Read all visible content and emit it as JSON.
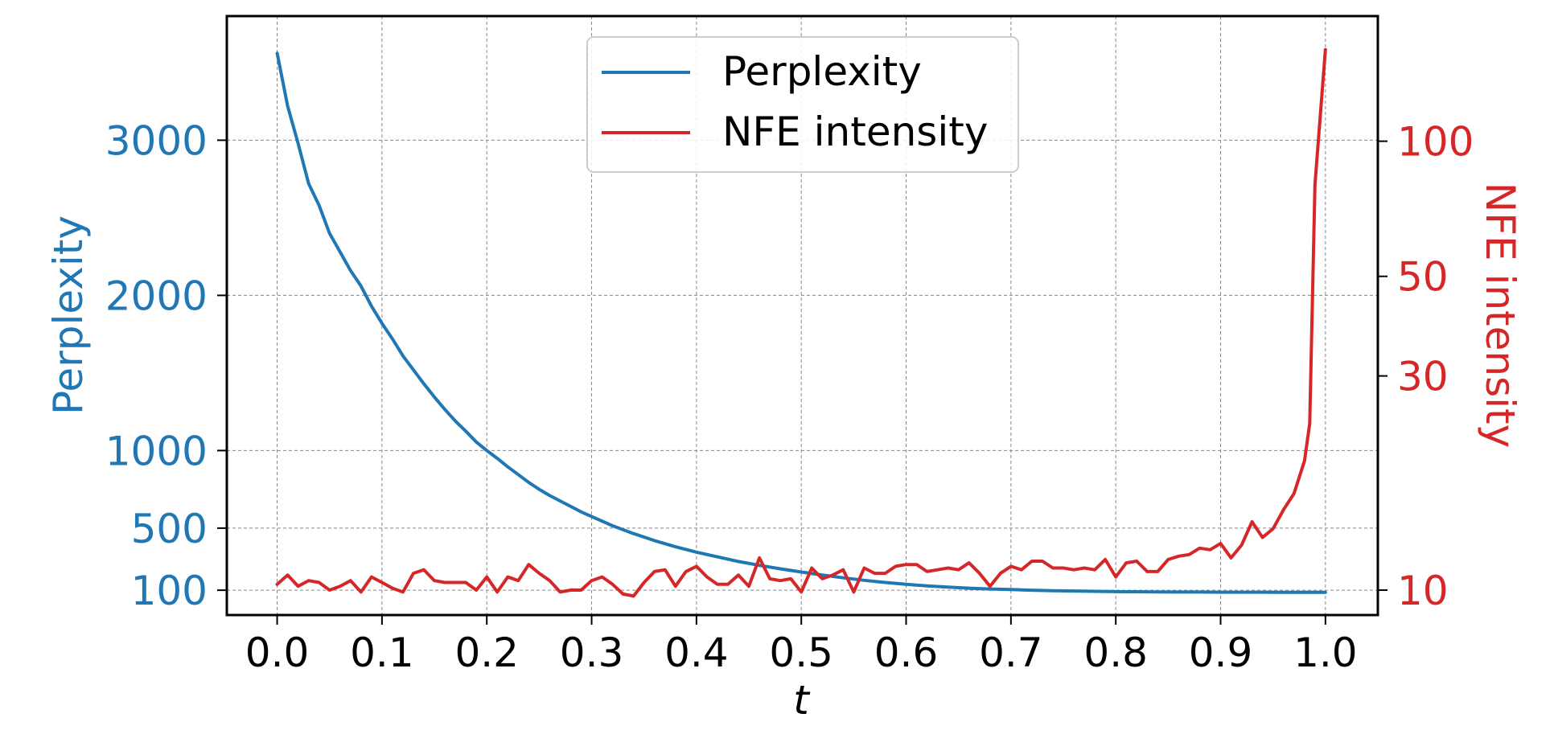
{
  "chart_data": {
    "type": "line",
    "xlabel": "t",
    "ylabel_left": "Perplexity",
    "ylabel_right": "NFE intensity",
    "xlim": [
      -0.048,
      1.05
    ],
    "ylim_left": [
      -60,
      3800
    ],
    "ylim_right_log": [
      8.8,
      190
    ],
    "grid": true,
    "legend_position": "top-center",
    "x_ticks": [
      "0.0",
      "0.1",
      "0.2",
      "0.3",
      "0.4",
      "0.5",
      "0.6",
      "0.7",
      "0.8",
      "0.9",
      "1.0"
    ],
    "left_ticks": [
      "100",
      "500",
      "1000",
      "2000",
      "3000"
    ],
    "right_ticks": [
      "10",
      "30",
      "50",
      "100"
    ],
    "colors": {
      "perplexity": "#1f77b4",
      "nfe": "#d62728",
      "grid": "#888888"
    },
    "legend": [
      "Perplexity",
      "NFE intensity"
    ],
    "series": [
      {
        "name": "Perplexity",
        "axis": "left",
        "x": [
          0.0,
          0.01,
          0.02,
          0.03,
          0.04,
          0.05,
          0.06,
          0.07,
          0.08,
          0.09,
          0.1,
          0.11,
          0.12,
          0.13,
          0.14,
          0.15,
          0.16,
          0.17,
          0.18,
          0.19,
          0.2,
          0.21,
          0.22,
          0.23,
          0.24,
          0.25,
          0.26,
          0.27,
          0.28,
          0.29,
          0.3,
          0.32,
          0.34,
          0.36,
          0.38,
          0.4,
          0.42,
          0.44,
          0.46,
          0.48,
          0.5,
          0.52,
          0.54,
          0.56,
          0.58,
          0.6,
          0.62,
          0.64,
          0.66,
          0.68,
          0.7,
          0.72,
          0.74,
          0.76,
          0.78,
          0.8,
          0.82,
          0.84,
          0.86,
          0.88,
          0.9,
          0.92,
          0.94,
          0.96,
          0.98,
          1.0
        ],
        "y": [
          3560,
          3220,
          2980,
          2720,
          2580,
          2400,
          2280,
          2160,
          2060,
          1930,
          1820,
          1720,
          1610,
          1520,
          1430,
          1345,
          1265,
          1190,
          1125,
          1055,
          1000,
          950,
          895,
          845,
          795,
          750,
          710,
          675,
          640,
          605,
          575,
          515,
          465,
          420,
          380,
          345,
          315,
          285,
          260,
          238,
          217,
          198,
          180,
          164,
          150,
          138,
          128,
          120,
          113,
          108,
          104,
          100,
          97,
          95,
          93,
          91,
          90,
          89,
          88,
          88,
          87,
          87,
          87,
          86,
          86,
          86
        ]
      },
      {
        "name": "NFE intensity",
        "axis": "right",
        "x": [
          0.0,
          0.01,
          0.02,
          0.03,
          0.04,
          0.05,
          0.06,
          0.07,
          0.08,
          0.09,
          0.1,
          0.11,
          0.12,
          0.13,
          0.14,
          0.15,
          0.16,
          0.17,
          0.18,
          0.19,
          0.2,
          0.21,
          0.22,
          0.23,
          0.24,
          0.25,
          0.26,
          0.27,
          0.28,
          0.29,
          0.3,
          0.31,
          0.32,
          0.33,
          0.34,
          0.35,
          0.36,
          0.37,
          0.38,
          0.39,
          0.4,
          0.41,
          0.42,
          0.43,
          0.44,
          0.45,
          0.46,
          0.47,
          0.48,
          0.49,
          0.5,
          0.51,
          0.52,
          0.53,
          0.54,
          0.55,
          0.56,
          0.57,
          0.58,
          0.59,
          0.6,
          0.61,
          0.62,
          0.63,
          0.64,
          0.65,
          0.66,
          0.67,
          0.68,
          0.69,
          0.7,
          0.71,
          0.72,
          0.73,
          0.74,
          0.75,
          0.76,
          0.77,
          0.78,
          0.79,
          0.8,
          0.81,
          0.82,
          0.83,
          0.84,
          0.85,
          0.86,
          0.87,
          0.88,
          0.89,
          0.9,
          0.91,
          0.92,
          0.93,
          0.94,
          0.95,
          0.96,
          0.97,
          0.98,
          0.985,
          0.99,
          1.0
        ],
        "y": [
          10.3,
          10.8,
          10.2,
          10.5,
          10.4,
          10.0,
          10.2,
          10.5,
          9.9,
          10.7,
          10.4,
          10.1,
          9.9,
          10.9,
          11.1,
          10.5,
          10.4,
          10.4,
          10.4,
          10.0,
          10.7,
          9.9,
          10.7,
          10.5,
          11.4,
          10.9,
          10.5,
          9.9,
          10.0,
          10.0,
          10.5,
          10.7,
          10.3,
          9.8,
          9.7,
          10.4,
          11.0,
          11.1,
          10.2,
          11.0,
          11.3,
          10.7,
          10.3,
          10.3,
          10.8,
          10.2,
          11.8,
          10.6,
          10.5,
          10.6,
          9.9,
          11.2,
          10.6,
          10.8,
          11.1,
          9.9,
          11.2,
          10.9,
          10.9,
          11.3,
          11.4,
          11.4,
          11.0,
          11.1,
          11.2,
          11.1,
          11.5,
          10.9,
          10.2,
          10.9,
          11.3,
          11.1,
          11.6,
          11.6,
          11.2,
          11.2,
          11.1,
          11.2,
          11.1,
          11.7,
          10.7,
          11.5,
          11.6,
          11.0,
          11.0,
          11.7,
          11.9,
          12.0,
          12.4,
          12.3,
          12.7,
          11.8,
          12.6,
          14.2,
          13.1,
          13.7,
          15.1,
          16.4,
          19.4,
          23.5,
          80.0,
          160.0
        ]
      }
    ]
  }
}
